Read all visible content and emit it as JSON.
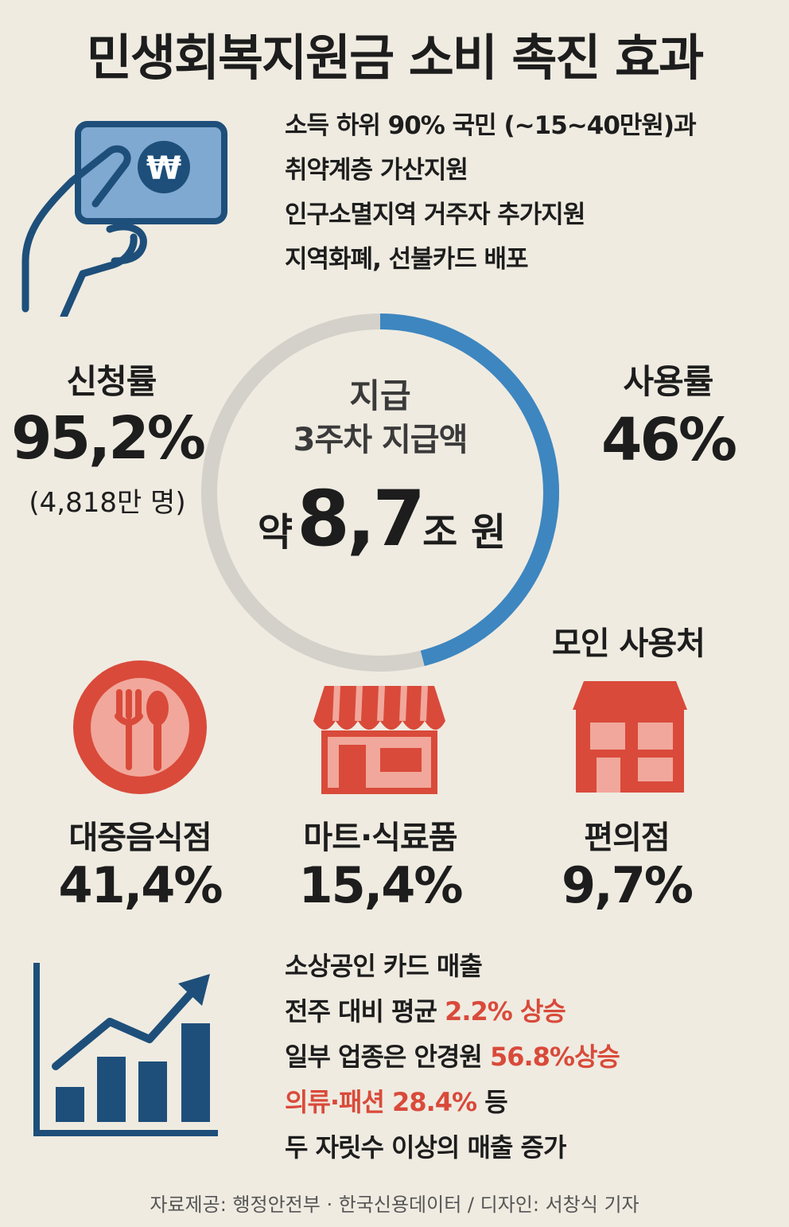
{
  "title": "민생회복지원금 소비 촉진 효과",
  "intro": {
    "icon": "hand-holding-won-card-icon",
    "lines": [
      "소득 하위 90% 국민 (~15~40만원)과",
      "취약계층 가산지원",
      "인구소멸지역 거주자 추가지원",
      "지역화폐, 선불카드 배포"
    ]
  },
  "application": {
    "label": "신청률",
    "value": "95,2%",
    "sub": "(4,818만 명)"
  },
  "usage": {
    "label": "사용률",
    "value": "46%",
    "fraction": 0.46
  },
  "center": {
    "line1": "지급",
    "line2": "3주차 지급액",
    "prefix": "약",
    "amount": "8,7",
    "unit": "조 원"
  },
  "places_title": "모인 사용처",
  "places": [
    {
      "icon": "fork-spoon-icon",
      "label": "대중음식점",
      "value": "41,4%"
    },
    {
      "icon": "storefront-awning-icon",
      "label": "마트·식료품",
      "value": "15,4%"
    },
    {
      "icon": "convenience-store-icon",
      "label": "편의점",
      "value": "9,7%"
    }
  ],
  "sales": {
    "icon": "rising-bar-chart-icon",
    "line1": "소상공인 카드 매출",
    "line2_plain": "전주 대비 평균 ",
    "line2_red": "2.2% 상승",
    "line3_plain": "일부 업종은 안경원 ",
    "line3_red": "56.8%상승",
    "line4_red": "의류·패션 28.4%",
    "line4_plain": " 등",
    "line5": "두 자릿수 이상의 매출 증가"
  },
  "footer": "자료제공: 행정안전부 · 한국신용데이터 / 디자인: 서창식 기자",
  "colors": {
    "blue": "#3d86c0",
    "navy": "#1e4f7a",
    "red": "#d94a3a",
    "pink": "#f1a79b",
    "ring_gray": "#d4d1ca",
    "background": "#efebe1"
  }
}
